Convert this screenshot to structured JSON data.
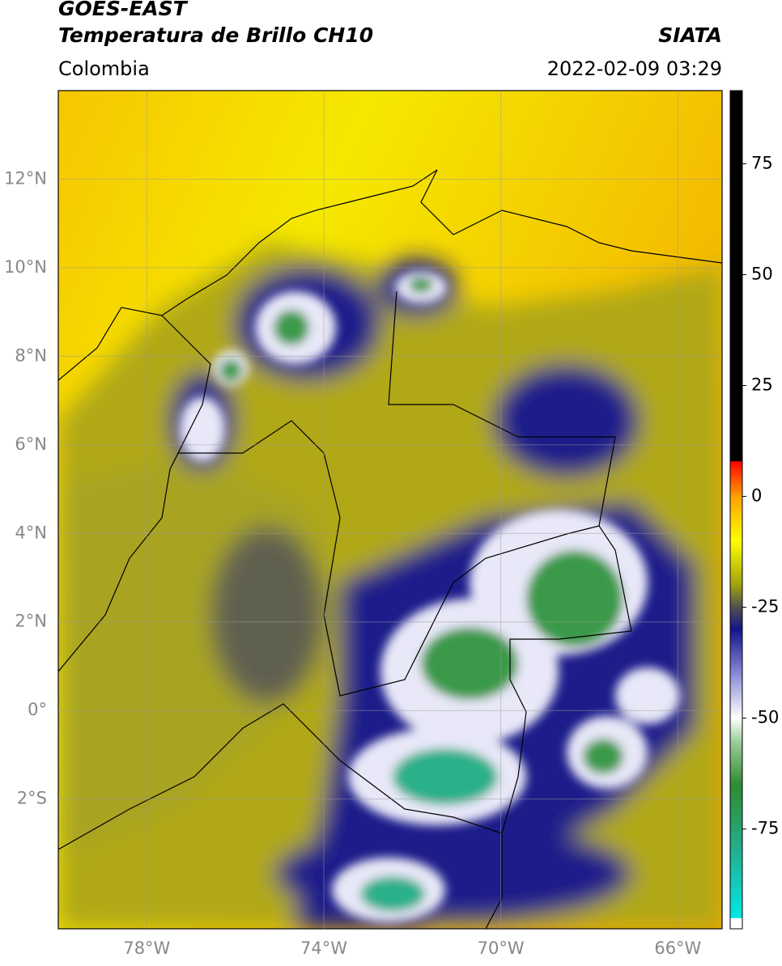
{
  "header": {
    "title": "GOES-EAST",
    "subtitle": "Temperatura de Brillo CH10",
    "source": "SIATA",
    "region": "Colombia",
    "datetime": "2022-02-09 03:29"
  },
  "map": {
    "xlim": [
      -80,
      -65
    ],
    "ylim": [
      -4.93,
      14
    ],
    "xticks": [
      {
        "value": -78,
        "label": "78°W"
      },
      {
        "value": -74,
        "label": "74°W"
      },
      {
        "value": -70,
        "label": "70°W"
      },
      {
        "value": -66,
        "label": "66°W"
      }
    ],
    "yticks": [
      {
        "value": 12,
        "label": "12°N"
      },
      {
        "value": 10,
        "label": "10°N"
      },
      {
        "value": 8,
        "label": "8°N"
      },
      {
        "value": 6,
        "label": "6°N"
      },
      {
        "value": 4,
        "label": "4°N"
      },
      {
        "value": 2,
        "label": "2°N"
      },
      {
        "value": 0,
        "label": "0°"
      },
      {
        "value": -2,
        "label": "2°S"
      }
    ],
    "grid": true
  },
  "colorbar": {
    "lim": [
      -97.5,
      91.5
    ],
    "ticks": [
      75,
      50,
      25,
      0,
      -25,
      -50,
      -75
    ],
    "colormap": [
      {
        "value": -97.5,
        "color": "#ffffff"
      },
      {
        "value": -95,
        "color": "#ffffff"
      },
      {
        "value": -95,
        "color": "#00e8e8"
      },
      {
        "value": -80,
        "color": "#22b090"
      },
      {
        "value": -65,
        "color": "#2e8b2e"
      },
      {
        "value": -55,
        "color": "#a0d0a0"
      },
      {
        "value": -50,
        "color": "#ffffff"
      },
      {
        "value": -40,
        "color": "#8a8ad8"
      },
      {
        "value": -30,
        "color": "#14148a"
      },
      {
        "value": -25,
        "color": "#505050"
      },
      {
        "value": -20,
        "color": "#a0a010"
      },
      {
        "value": -10,
        "color": "#ffff00"
      },
      {
        "value": 0,
        "color": "#ffa000"
      },
      {
        "value": 8,
        "color": "#ff0000"
      },
      {
        "value": 8,
        "color": "#000000"
      },
      {
        "value": 91.5,
        "color": "#000000"
      }
    ]
  }
}
